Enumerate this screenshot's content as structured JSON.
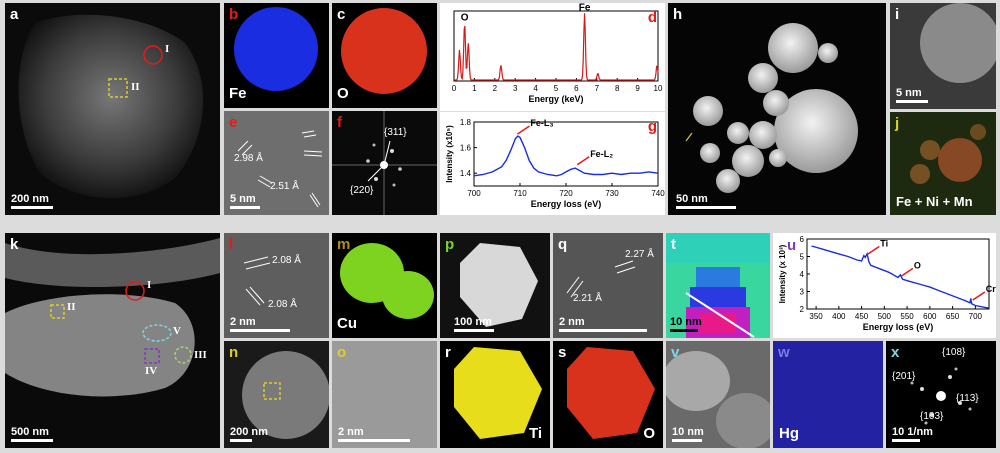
{
  "panels": {
    "a": {
      "label": "a",
      "scale": "200 nm",
      "markers": [
        "I",
        "II"
      ]
    },
    "b": {
      "label": "b",
      "element": "Fe",
      "color": "#1a2de0"
    },
    "c": {
      "label": "c",
      "element": "O",
      "color": "#d8321c"
    },
    "e": {
      "label": "e",
      "scale": "5 nm",
      "dspacings": [
        "2.98 Å",
        "2.51 Å"
      ]
    },
    "f": {
      "label": "f",
      "spots": [
        "{311}",
        "{220}"
      ]
    },
    "h": {
      "label": "h",
      "scale": "50 nm"
    },
    "i": {
      "label": "i",
      "scale": "5 nm"
    },
    "j": {
      "label": "j",
      "element": "Fe + Ni + Mn"
    },
    "k": {
      "label": "k",
      "scale": "500 nm",
      "markers": [
        "I",
        "II",
        "III",
        "IV",
        "V"
      ]
    },
    "l": {
      "label": "l",
      "scale": "2 nm",
      "dspacings": [
        "2.08 Å",
        "2.08 Å"
      ]
    },
    "m": {
      "label": "m",
      "element": "Cu",
      "color": "#7ed321"
    },
    "n": {
      "label": "n",
      "scale": "200 nm"
    },
    "o": {
      "label": "o",
      "scale": "2 nm"
    },
    "p": {
      "label": "p",
      "scale": "100 nm"
    },
    "q": {
      "label": "q",
      "scale": "2 nm",
      "dspacings": [
        "2.27 Å",
        "2.21 Å"
      ]
    },
    "r": {
      "label": "r",
      "element": "Ti",
      "color": "#e8dd1a"
    },
    "s": {
      "label": "s",
      "element": "O",
      "color": "#d8321c"
    },
    "t": {
      "label": "t",
      "scale": "10 nm"
    },
    "v": {
      "label": "v",
      "scale": "10 nm"
    },
    "w": {
      "label": "w",
      "element": "Hg",
      "color": "#2a2ad0"
    },
    "x": {
      "label": "x",
      "scale": "10 1/nm",
      "spots": [
        "{108}",
        "{201}",
        "{113}",
        "{103}"
      ]
    }
  },
  "chart_data": [
    {
      "panel": "d",
      "type": "line",
      "title": "",
      "xlabel": "Energy (keV)",
      "ylabel": "",
      "xlim": [
        0,
        10
      ],
      "xticks": [
        0,
        1,
        2,
        3,
        4,
        5,
        6,
        7,
        8,
        9,
        10
      ],
      "color": "#d41a1a",
      "peak_labels": [
        {
          "x": 0.52,
          "text": "O"
        },
        {
          "x": 6.4,
          "text": "Fe"
        }
      ],
      "peaks": [
        {
          "x": 0.27,
          "h": 0.45
        },
        {
          "x": 0.52,
          "h": 0.85
        },
        {
          "x": 0.7,
          "h": 0.55
        },
        {
          "x": 2.3,
          "h": 0.22
        },
        {
          "x": 6.4,
          "h": 1.0
        },
        {
          "x": 7.05,
          "h": 0.1
        },
        {
          "x": 9.95,
          "h": 0.22
        }
      ]
    },
    {
      "panel": "g",
      "type": "line",
      "xlabel": "Energy loss (eV)",
      "ylabel": "Intensity (x10⁵)",
      "xlim": [
        700,
        740
      ],
      "ylim": [
        1.3,
        1.8
      ],
      "xticks": [
        700,
        710,
        720,
        730,
        740
      ],
      "yticks": [
        1.4,
        1.6,
        1.8
      ],
      "color": "#1a2de0",
      "annotations": [
        {
          "text": "Fe-L₃",
          "x": 709,
          "y": 1.69
        },
        {
          "text": "Fe-L₂",
          "x": 722,
          "y": 1.45
        }
      ],
      "x": [
        700,
        702,
        704,
        706,
        707,
        708,
        709,
        709.5,
        710,
        711,
        712,
        713,
        714,
        716,
        718,
        719,
        720,
        721,
        722,
        723,
        724,
        726,
        728,
        730,
        732,
        734,
        736,
        738,
        740
      ],
      "y": [
        1.38,
        1.39,
        1.41,
        1.45,
        1.5,
        1.58,
        1.67,
        1.69,
        1.68,
        1.6,
        1.5,
        1.44,
        1.41,
        1.39,
        1.38,
        1.39,
        1.41,
        1.43,
        1.44,
        1.42,
        1.4,
        1.39,
        1.39,
        1.4,
        1.39,
        1.4,
        1.4,
        1.41,
        1.4
      ]
    },
    {
      "panel": "u",
      "type": "line",
      "xlabel": "Energy loss (eV)",
      "ylabel": "Intensity (x 10³)",
      "xlim": [
        330,
        730
      ],
      "ylim": [
        2,
        6
      ],
      "xticks": [
        350,
        400,
        450,
        500,
        550,
        600,
        650,
        700
      ],
      "yticks": [
        2,
        3,
        4,
        5,
        6
      ],
      "color": "#1a2de0",
      "annotations": [
        {
          "text": "Ti",
          "x": 458,
          "y": 5.0
        },
        {
          "text": "O",
          "x": 532,
          "y": 3.75
        },
        {
          "text": "Cr",
          "x": 690,
          "y": 2.4
        }
      ],
      "x": [
        340,
        360,
        380,
        400,
        420,
        440,
        450,
        455,
        458,
        462,
        466,
        470,
        490,
        510,
        530,
        535,
        540,
        560,
        580,
        600,
        620,
        640,
        660,
        680,
        688,
        690,
        692,
        700,
        720,
        730
      ],
      "y": [
        5.6,
        5.45,
        5.3,
        5.15,
        5.0,
        4.8,
        4.75,
        5.05,
        4.95,
        5.15,
        4.7,
        4.5,
        4.3,
        4.1,
        3.8,
        3.95,
        3.7,
        3.55,
        3.4,
        3.25,
        3.05,
        2.85,
        2.65,
        2.45,
        2.35,
        2.6,
        2.3,
        2.2,
        2.1,
        2.05
      ]
    }
  ]
}
